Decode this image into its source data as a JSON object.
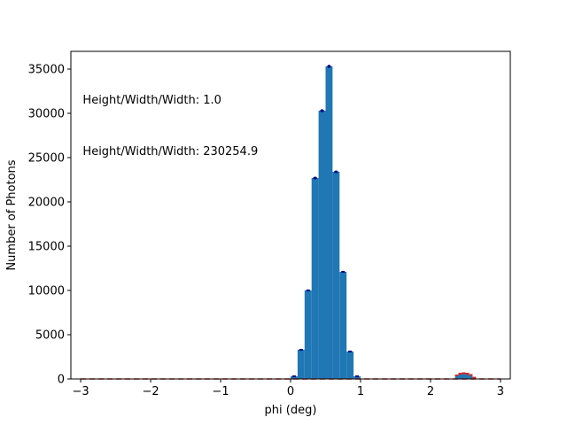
{
  "chart_data": {
    "type": "bar",
    "xlabel": "phi (deg)",
    "ylabel": "Number of Photons",
    "xlim": [
      -3.14,
      3.14
    ],
    "ylim": [
      0,
      37000
    ],
    "xticks": [
      -3,
      -2,
      -1,
      0,
      1,
      2,
      3
    ],
    "xtick_labels": [
      "−3",
      "−2",
      "−1",
      "0",
      "1",
      "2",
      "3"
    ],
    "yticks": [
      0,
      5000,
      10000,
      15000,
      20000,
      25000,
      30000,
      35000
    ],
    "ytick_labels": [
      "0",
      "5000",
      "10000",
      "15000",
      "20000",
      "25000",
      "30000",
      "35000"
    ],
    "annotations": [
      {
        "text": "Height/Width/Width: 1.0",
        "x": -2.97,
        "y": 31100
      },
      {
        "text": "Height/Width/Width: 230254.9",
        "x": -2.97,
        "y": 25300
      }
    ],
    "grid": false,
    "bin_width": 0.1,
    "series": [
      {
        "color": "#1f77b4",
        "bins": [
          {
            "x": 0.0,
            "value": 300
          },
          {
            "x": 0.1,
            "value": 3300
          },
          {
            "x": 0.2,
            "value": 10000
          },
          {
            "x": 0.3,
            "value": 22700
          },
          {
            "x": 0.4,
            "value": 30300
          },
          {
            "x": 0.5,
            "value": 35300
          },
          {
            "x": 0.6,
            "value": 23400
          },
          {
            "x": 0.7,
            "value": 12100
          },
          {
            "x": 0.8,
            "value": 3100
          },
          {
            "x": 0.9,
            "value": 300
          }
        ],
        "error_bar_color": "#00008b"
      },
      {
        "color": "#1f77b4",
        "bins": [
          {
            "x": 2.35,
            "value": 400
          },
          {
            "x": 2.4,
            "value": 600
          },
          {
            "x": 2.45,
            "value": 650
          },
          {
            "x": 2.5,
            "value": 600
          },
          {
            "x": 2.55,
            "value": 450
          },
          {
            "x": 2.6,
            "value": 150
          }
        ],
        "error_bar_color": "#d62728",
        "bin_width": 0.05
      }
    ],
    "baseline_line": {
      "style": "dashed",
      "color": "#d62728",
      "from": -3.0,
      "to": 3.0,
      "y": 0
    }
  },
  "colors": {
    "bar": "#1f77b4",
    "error_dark": "#00008b",
    "error_red": "#d62728"
  }
}
